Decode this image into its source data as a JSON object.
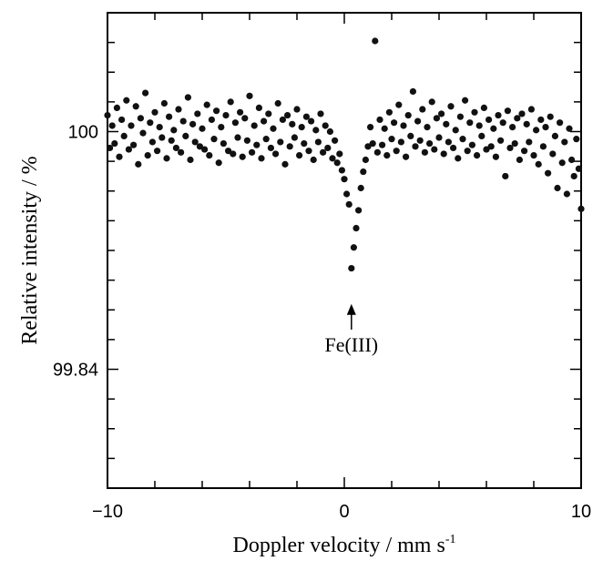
{
  "chart_data": {
    "type": "scatter",
    "title": "",
    "xlabel": "Doppler velocity / mm s",
    "xlabel_superscript": "-1",
    "ylabel": "Relative intensity / %",
    "xlim": [
      -10,
      10
    ],
    "ylim": [
      99.76,
      100.08
    ],
    "x_ticks": [
      -10,
      0,
      10
    ],
    "x_tick_labels": [
      "−10",
      "0",
      "10"
    ],
    "y_ticks": [
      99.84,
      100
    ],
    "y_tick_labels": [
      "99.84",
      "100"
    ],
    "grid": false,
    "legend": "none",
    "marker_color": "#111111",
    "annotations": [
      {
        "text": "Fe(III)",
        "x": 0.3,
        "y": 99.852,
        "arrow_tip_y": 99.884,
        "arrow": "up"
      }
    ],
    "series": [
      {
        "values_note_free": true,
        "points": [
          [
            -10.0,
            100.011
          ],
          [
            -9.9,
            99.989
          ],
          [
            -9.8,
            100.004
          ],
          [
            -9.7,
            99.992
          ],
          [
            -9.6,
            100.016
          ],
          [
            -9.5,
            99.983
          ],
          [
            -9.4,
            100.008
          ],
          [
            -9.3,
            99.997
          ],
          [
            -9.2,
            100.021
          ],
          [
            -9.1,
            99.988
          ],
          [
            -9.0,
            100.004
          ],
          [
            -8.9,
            99.991
          ],
          [
            -8.8,
            100.017
          ],
          [
            -8.7,
            99.978
          ],
          [
            -8.6,
            100.009
          ],
          [
            -8.5,
            99.999
          ],
          [
            -8.4,
            100.026
          ],
          [
            -8.3,
            99.984
          ],
          [
            -8.2,
            100.006
          ],
          [
            -8.1,
            99.993
          ],
          [
            -8.0,
            100.013
          ],
          [
            -7.9,
            99.987
          ],
          [
            -7.8,
            100.003
          ],
          [
            -7.7,
            99.996
          ],
          [
            -7.6,
            100.019
          ],
          [
            -7.5,
            99.982
          ],
          [
            -7.4,
            100.01
          ],
          [
            -7.3,
            99.994
          ],
          [
            -7.2,
            100.001
          ],
          [
            -7.1,
            99.989
          ],
          [
            -7.0,
            100.015
          ],
          [
            -6.9,
            99.986
          ],
          [
            -6.8,
            100.007
          ],
          [
            -6.7,
            99.997
          ],
          [
            -6.6,
            100.023
          ],
          [
            -6.5,
            99.981
          ],
          [
            -6.4,
            100.005
          ],
          [
            -6.3,
            99.993
          ],
          [
            -6.2,
            100.012
          ],
          [
            -6.1,
            99.99
          ],
          [
            -6.0,
            100.002
          ],
          [
            -5.9,
            99.988
          ],
          [
            -5.8,
            100.018
          ],
          [
            -5.7,
            99.984
          ],
          [
            -5.6,
            100.008
          ],
          [
            -5.5,
            99.995
          ],
          [
            -5.4,
            100.014
          ],
          [
            -5.3,
            99.979
          ],
          [
            -5.2,
            100.003
          ],
          [
            -5.1,
            99.992
          ],
          [
            -5.0,
            100.011
          ],
          [
            -4.9,
            99.987
          ],
          [
            -4.8,
            100.02
          ],
          [
            -4.7,
            99.985
          ],
          [
            -4.6,
            100.006
          ],
          [
            -4.5,
            99.996
          ],
          [
            -4.4,
            100.013
          ],
          [
            -4.3,
            99.983
          ],
          [
            -4.2,
            100.009
          ],
          [
            -4.1,
            99.994
          ],
          [
            -4.0,
            100.024
          ],
          [
            -3.9,
            99.986
          ],
          [
            -3.8,
            100.004
          ],
          [
            -3.7,
            99.991
          ],
          [
            -3.6,
            100.016
          ],
          [
            -3.5,
            99.982
          ],
          [
            -3.4,
            100.007
          ],
          [
            -3.3,
            99.995
          ],
          [
            -3.2,
            100.012
          ],
          [
            -3.1,
            99.989
          ],
          [
            -3.0,
            100.002
          ],
          [
            -2.9,
            99.985
          ],
          [
            -2.8,
            100.019
          ],
          [
            -2.7,
            99.993
          ],
          [
            -2.6,
            100.008
          ],
          [
            -2.5,
            99.978
          ],
          [
            -2.4,
            100.011
          ],
          [
            -2.3,
            99.99
          ],
          [
            -2.2,
            100.005
          ],
          [
            -2.1,
            99.996
          ],
          [
            -2.0,
            100.015
          ],
          [
            -1.9,
            99.984
          ],
          [
            -1.8,
            100.003
          ],
          [
            -1.7,
            99.992
          ],
          [
            -1.6,
            100.01
          ],
          [
            -1.5,
            99.987
          ],
          [
            -1.4,
            100.007
          ],
          [
            -1.3,
            99.981
          ],
          [
            -1.2,
            100.001
          ],
          [
            -1.1,
            99.993
          ],
          [
            -1.0,
            100.012
          ],
          [
            -0.9,
            99.986
          ],
          [
            -0.8,
            100.004
          ],
          [
            -0.7,
            99.989
          ],
          [
            -0.6,
            100.0
          ],
          [
            -0.5,
            99.982
          ],
          [
            -0.4,
            99.994
          ],
          [
            -0.3,
            99.979
          ],
          [
            -0.2,
            99.985
          ],
          [
            -0.1,
            99.974
          ],
          [
            0.0,
            99.968
          ],
          [
            0.1,
            99.958
          ],
          [
            0.2,
            99.951
          ],
          [
            0.3,
            99.908
          ],
          [
            0.4,
            99.922
          ],
          [
            0.5,
            99.935
          ],
          [
            0.6,
            99.947
          ],
          [
            0.7,
            99.962
          ],
          [
            0.8,
            99.973
          ],
          [
            0.9,
            99.981
          ],
          [
            1.0,
            99.99
          ],
          [
            1.1,
            100.003
          ],
          [
            1.2,
            99.992
          ],
          [
            1.3,
            100.061
          ],
          [
            1.4,
            99.986
          ],
          [
            1.5,
            100.008
          ],
          [
            1.6,
            99.991
          ],
          [
            1.7,
            100.002
          ],
          [
            1.8,
            99.984
          ],
          [
            1.9,
            100.013
          ],
          [
            2.0,
            99.995
          ],
          [
            2.1,
            100.006
          ],
          [
            2.2,
            99.987
          ],
          [
            2.3,
            100.018
          ],
          [
            2.4,
            99.993
          ],
          [
            2.5,
            100.004
          ],
          [
            2.6,
            99.983
          ],
          [
            2.7,
            100.011
          ],
          [
            2.8,
            99.997
          ],
          [
            2.9,
            100.027
          ],
          [
            3.0,
            99.99
          ],
          [
            3.1,
            100.007
          ],
          [
            3.2,
            99.994
          ],
          [
            3.3,
            100.015
          ],
          [
            3.4,
            99.986
          ],
          [
            3.5,
            100.003
          ],
          [
            3.6,
            99.992
          ],
          [
            3.7,
            100.02
          ],
          [
            3.8,
            99.988
          ],
          [
            3.9,
            100.009
          ],
          [
            4.0,
            99.996
          ],
          [
            4.1,
            100.012
          ],
          [
            4.2,
            99.985
          ],
          [
            4.3,
            100.005
          ],
          [
            4.4,
            99.993
          ],
          [
            4.5,
            100.017
          ],
          [
            4.6,
            99.989
          ],
          [
            4.7,
            100.001
          ],
          [
            4.8,
            99.982
          ],
          [
            4.9,
            100.01
          ],
          [
            5.0,
            99.995
          ],
          [
            5.1,
            100.021
          ],
          [
            5.2,
            99.987
          ],
          [
            5.3,
            100.006
          ],
          [
            5.4,
            99.991
          ],
          [
            5.5,
            100.013
          ],
          [
            5.6,
            99.984
          ],
          [
            5.7,
            100.004
          ],
          [
            5.8,
            99.997
          ],
          [
            5.9,
            100.016
          ],
          [
            6.0,
            99.988
          ],
          [
            6.1,
            100.008
          ],
          [
            6.2,
            99.99
          ],
          [
            6.3,
            100.002
          ],
          [
            6.4,
            99.983
          ],
          [
            6.5,
            100.011
          ],
          [
            6.6,
            99.994
          ],
          [
            6.7,
            100.006
          ],
          [
            6.8,
            99.97
          ],
          [
            6.9,
            100.014
          ],
          [
            7.0,
            99.989
          ],
          [
            7.1,
            100.003
          ],
          [
            7.2,
            99.992
          ],
          [
            7.3,
            100.009
          ],
          [
            7.4,
            99.981
          ],
          [
            7.5,
            100.012
          ],
          [
            7.6,
            99.987
          ],
          [
            7.7,
            100.005
          ],
          [
            7.8,
            99.993
          ],
          [
            7.9,
            100.015
          ],
          [
            8.0,
            99.984
          ],
          [
            8.1,
            100.001
          ],
          [
            8.2,
            99.978
          ],
          [
            8.3,
            100.008
          ],
          [
            8.4,
            99.99
          ],
          [
            8.5,
            100.003
          ],
          [
            8.6,
            99.972
          ],
          [
            8.7,
            100.01
          ],
          [
            8.8,
            99.985
          ],
          [
            8.9,
            99.997
          ],
          [
            9.0,
            99.962
          ],
          [
            9.1,
            100.006
          ],
          [
            9.2,
            99.979
          ],
          [
            9.3,
            99.993
          ],
          [
            9.4,
            99.958
          ],
          [
            9.5,
            100.002
          ],
          [
            9.6,
            99.981
          ],
          [
            9.7,
            99.97
          ],
          [
            9.8,
            99.995
          ],
          [
            9.9,
            99.975
          ],
          [
            10.0,
            99.948
          ]
        ]
      }
    ]
  }
}
